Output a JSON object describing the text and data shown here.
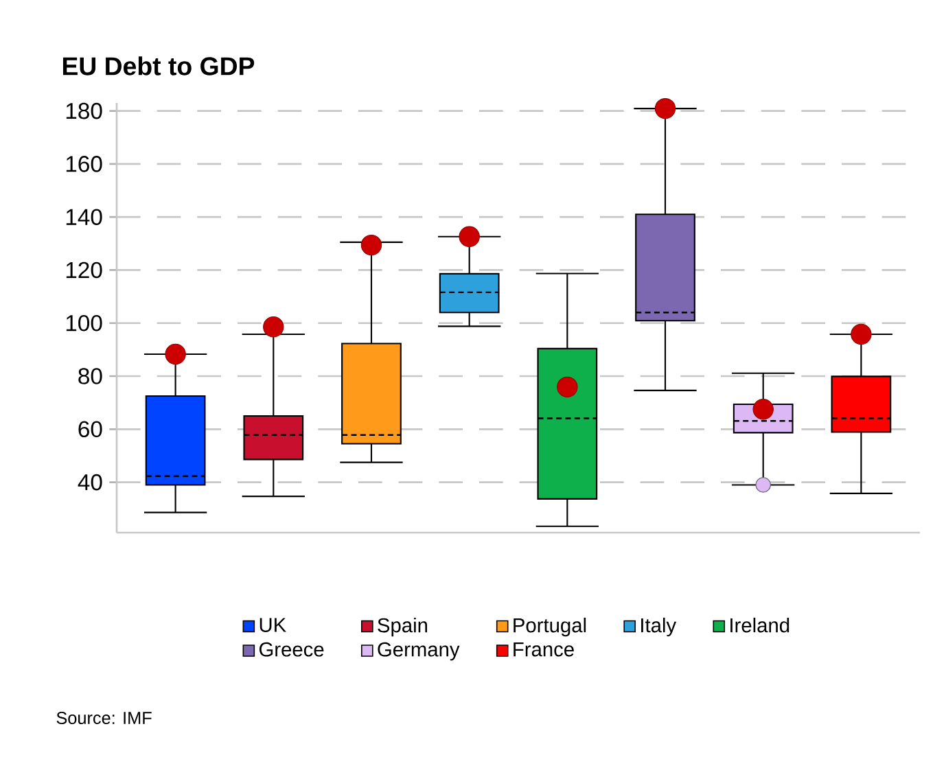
{
  "chart_data": {
    "type": "box",
    "title": "EU Debt to GDP",
    "annotations": [
      "Source: IMF"
    ],
    "categories": [
      null
    ],
    "series": [
      {
        "name": "UK",
        "color": "#0044ff",
        "boxes": [
          {
            "low": 28.6,
            "q1": 39,
            "median": 42.3,
            "q3": 72.5,
            "high": 88.3,
            "mean": 88.3
          }
        ]
      },
      {
        "name": "Spain",
        "color": "#c8102e",
        "boxes": [
          {
            "low": 34.7,
            "q1": 48.6,
            "median": 57.8,
            "q3": 65,
            "high": 95.8,
            "mean": 98.6
          }
        ]
      },
      {
        "name": "Portugal",
        "color": "#ff9a1a",
        "boxes": [
          {
            "low": 47.5,
            "q1": 54.5,
            "median": 57.8,
            "q3": 92.3,
            "high": 130.5,
            "mean": 129.4
          }
        ]
      },
      {
        "name": "Italy",
        "color": "#2ea0dc",
        "boxes": [
          {
            "low": 98.8,
            "q1": 104,
            "median": 111.6,
            "q3": 118.6,
            "high": 132.6,
            "mean": 132.6
          }
        ]
      },
      {
        "name": "Ireland",
        "color": "#0db04b",
        "boxes": [
          {
            "low": 23.4,
            "q1": 33.7,
            "median": 64.1,
            "q3": 90.4,
            "high": 118.7,
            "mean": 75.9
          }
        ]
      },
      {
        "name": "Greece",
        "color": "#7b68b0",
        "boxes": [
          {
            "low": 74.6,
            "q1": 100.9,
            "median": 104,
            "q3": 141,
            "high": 180.9,
            "mean": 180.9
          }
        ]
      },
      {
        "name": "Germany",
        "color": "#dcb8f4",
        "boxes": [
          {
            "low": 39,
            "q1": 58.7,
            "median": 63.1,
            "q3": 69.4,
            "high": 81.1,
            "mean": 67.5,
            "outliers": [
              39
            ]
          }
        ]
      },
      {
        "name": "France",
        "color": "#ff0000",
        "boxes": [
          {
            "low": 35.8,
            "q1": 58.9,
            "median": 64.1,
            "q3": 79.9,
            "high": 95.8,
            "mean": 95.8
          }
        ]
      }
    ],
    "ylim": [
      21,
      183
    ],
    "yticks": [
      40,
      60,
      80,
      100,
      120,
      140,
      160,
      180
    ],
    "grid": "y",
    "legend": "bottom",
    "tick_labels": "y"
  }
}
